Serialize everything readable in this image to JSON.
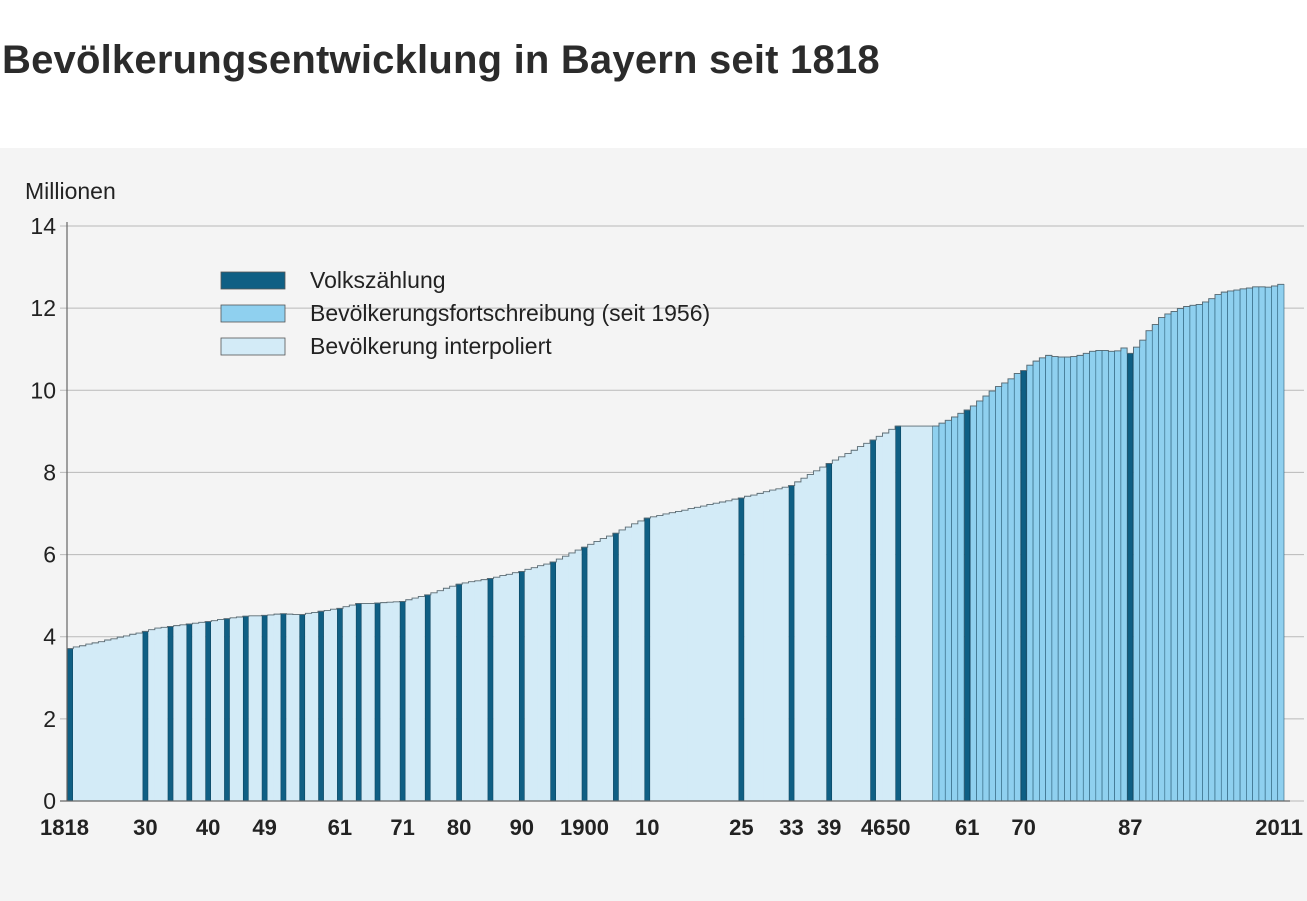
{
  "chart_data": {
    "type": "bar",
    "title": "Bevölkerungsentwicklung in Bayern seit 1818",
    "ylabel": "Millionen",
    "xlabel": "",
    "ylim": [
      0,
      14
    ],
    "y_ticks": [
      0,
      2,
      4,
      6,
      8,
      10,
      12,
      14
    ],
    "grid": true,
    "x_range": [
      1818,
      2011
    ],
    "x_tick_labels": [
      {
        "year": 1818,
        "label": "1818"
      },
      {
        "year": 1830,
        "label": "30"
      },
      {
        "year": 1840,
        "label": "40"
      },
      {
        "year": 1849,
        "label": "49"
      },
      {
        "year": 1861,
        "label": "61"
      },
      {
        "year": 1871,
        "label": "71"
      },
      {
        "year": 1880,
        "label": "80"
      },
      {
        "year": 1890,
        "label": "90"
      },
      {
        "year": 1900,
        "label": "1900"
      },
      {
        "year": 1910,
        "label": "10"
      },
      {
        "year": 1925,
        "label": "25"
      },
      {
        "year": 1933,
        "label": "33"
      },
      {
        "year": 1939,
        "label": "39"
      },
      {
        "year": 1946,
        "label": "46"
      },
      {
        "year": 1950,
        "label": "50"
      },
      {
        "year": 1961,
        "label": "61"
      },
      {
        "year": 1970,
        "label": "70"
      },
      {
        "year": 1987,
        "label": "87"
      },
      {
        "year": 2011,
        "label": "2011"
      }
    ],
    "legend": {
      "placement": "top-left",
      "entries": [
        {
          "key": "census",
          "label": "Volkszählung",
          "color": "#0f5f84"
        },
        {
          "key": "estimate",
          "label": "Bevölkerungsfortschreibung (seit 1956)",
          "color": "#8fd0ef"
        },
        {
          "key": "interpolated",
          "label": "Bevölkerung interpoliert",
          "color": "#d3ebf7"
        }
      ]
    },
    "series": [
      {
        "key": "census",
        "values": [
          [
            1818,
            3.71
          ],
          [
            1830,
            4.13
          ],
          [
            1834,
            4.25
          ],
          [
            1837,
            4.31
          ],
          [
            1840,
            4.37
          ],
          [
            1843,
            4.44
          ],
          [
            1846,
            4.5
          ],
          [
            1849,
            4.52
          ],
          [
            1852,
            4.56
          ],
          [
            1855,
            4.54
          ],
          [
            1858,
            4.62
          ],
          [
            1861,
            4.69
          ],
          [
            1864,
            4.81
          ],
          [
            1867,
            4.82
          ],
          [
            1871,
            4.86
          ],
          [
            1875,
            5.02
          ],
          [
            1880,
            5.28
          ],
          [
            1885,
            5.42
          ],
          [
            1890,
            5.59
          ],
          [
            1895,
            5.82
          ],
          [
            1900,
            6.18
          ],
          [
            1905,
            6.52
          ],
          [
            1910,
            6.89
          ],
          [
            1925,
            7.38
          ],
          [
            1933,
            7.68
          ],
          [
            1939,
            8.22
          ],
          [
            1946,
            8.79
          ],
          [
            1950,
            9.13
          ],
          [
            1961,
            9.52
          ],
          [
            1970,
            10.48
          ],
          [
            1987,
            10.9
          ]
        ]
      },
      {
        "key": "estimate",
        "values": [
          [
            1956,
            9.13
          ],
          [
            1957,
            9.2
          ],
          [
            1958,
            9.27
          ],
          [
            1959,
            9.35
          ],
          [
            1960,
            9.44
          ],
          [
            1962,
            9.62
          ],
          [
            1963,
            9.74
          ],
          [
            1964,
            9.86
          ],
          [
            1965,
            9.98
          ],
          [
            1966,
            10.09
          ],
          [
            1967,
            10.18
          ],
          [
            1968,
            10.28
          ],
          [
            1969,
            10.41
          ],
          [
            1971,
            10.61
          ],
          [
            1972,
            10.71
          ],
          [
            1973,
            10.79
          ],
          [
            1974,
            10.85
          ],
          [
            1975,
            10.82
          ],
          [
            1976,
            10.81
          ],
          [
            1977,
            10.81
          ],
          [
            1978,
            10.82
          ],
          [
            1979,
            10.85
          ],
          [
            1980,
            10.9
          ],
          [
            1981,
            10.95
          ],
          [
            1982,
            10.97
          ],
          [
            1983,
            10.97
          ],
          [
            1984,
            10.95
          ],
          [
            1985,
            10.96
          ],
          [
            1986,
            11.03
          ],
          [
            1988,
            11.05
          ],
          [
            1989,
            11.22
          ],
          [
            1990,
            11.45
          ],
          [
            1991,
            11.6
          ],
          [
            1992,
            11.77
          ],
          [
            1993,
            11.86
          ],
          [
            1994,
            11.92
          ],
          [
            1995,
            11.99
          ],
          [
            1996,
            12.04
          ],
          [
            1997,
            12.07
          ],
          [
            1998,
            12.09
          ],
          [
            1999,
            12.15
          ],
          [
            2000,
            12.23
          ],
          [
            2001,
            12.33
          ],
          [
            2002,
            12.39
          ],
          [
            2003,
            12.42
          ],
          [
            2004,
            12.44
          ],
          [
            2005,
            12.47
          ],
          [
            2006,
            12.49
          ],
          [
            2007,
            12.52
          ],
          [
            2008,
            12.52
          ],
          [
            2009,
            12.51
          ],
          [
            2010,
            12.54
          ],
          [
            2011,
            12.58
          ]
        ]
      },
      {
        "key": "interpolated",
        "values": [
          [
            1819,
            3.75
          ],
          [
            1820,
            3.78
          ],
          [
            1821,
            3.82
          ],
          [
            1822,
            3.85
          ],
          [
            1823,
            3.88
          ],
          [
            1824,
            3.92
          ],
          [
            1825,
            3.95
          ],
          [
            1826,
            3.99
          ],
          [
            1827,
            4.02
          ],
          [
            1828,
            4.06
          ],
          [
            1829,
            4.09
          ],
          [
            1831,
            4.17
          ],
          [
            1832,
            4.21
          ],
          [
            1833,
            4.23
          ],
          [
            1835,
            4.27
          ],
          [
            1836,
            4.29
          ],
          [
            1838,
            4.33
          ],
          [
            1839,
            4.35
          ],
          [
            1841,
            4.39
          ],
          [
            1842,
            4.42
          ],
          [
            1844,
            4.46
          ],
          [
            1845,
            4.48
          ],
          [
            1847,
            4.51
          ],
          [
            1848,
            4.51
          ],
          [
            1850,
            4.53
          ],
          [
            1851,
            4.55
          ],
          [
            1853,
            4.55
          ],
          [
            1854,
            4.54
          ],
          [
            1856,
            4.57
          ],
          [
            1857,
            4.59
          ],
          [
            1859,
            4.64
          ],
          [
            1860,
            4.67
          ],
          [
            1862,
            4.73
          ],
          [
            1863,
            4.77
          ],
          [
            1865,
            4.81
          ],
          [
            1866,
            4.81
          ],
          [
            1868,
            4.83
          ],
          [
            1869,
            4.84
          ],
          [
            1870,
            4.85
          ],
          [
            1872,
            4.9
          ],
          [
            1873,
            4.94
          ],
          [
            1874,
            4.98
          ],
          [
            1876,
            5.07
          ],
          [
            1877,
            5.12
          ],
          [
            1878,
            5.18
          ],
          [
            1879,
            5.23
          ],
          [
            1881,
            5.31
          ],
          [
            1882,
            5.34
          ],
          [
            1883,
            5.36
          ],
          [
            1884,
            5.39
          ],
          [
            1886,
            5.45
          ],
          [
            1887,
            5.49
          ],
          [
            1888,
            5.52
          ],
          [
            1889,
            5.56
          ],
          [
            1891,
            5.64
          ],
          [
            1892,
            5.68
          ],
          [
            1893,
            5.73
          ],
          [
            1894,
            5.77
          ],
          [
            1896,
            5.89
          ],
          [
            1897,
            5.96
          ],
          [
            1898,
            6.04
          ],
          [
            1899,
            6.11
          ],
          [
            1901,
            6.25
          ],
          [
            1902,
            6.32
          ],
          [
            1903,
            6.39
          ],
          [
            1904,
            6.45
          ],
          [
            1906,
            6.6
          ],
          [
            1907,
            6.67
          ],
          [
            1908,
            6.75
          ],
          [
            1909,
            6.82
          ],
          [
            1911,
            6.92
          ],
          [
            1912,
            6.95
          ],
          [
            1913,
            6.99
          ],
          [
            1914,
            7.02
          ],
          [
            1915,
            7.05
          ],
          [
            1916,
            7.08
          ],
          [
            1917,
            7.12
          ],
          [
            1918,
            7.15
          ],
          [
            1919,
            7.18
          ],
          [
            1920,
            7.22
          ],
          [
            1921,
            7.25
          ],
          [
            1922,
            7.28
          ],
          [
            1923,
            7.31
          ],
          [
            1924,
            7.35
          ],
          [
            1926,
            7.42
          ],
          [
            1927,
            7.45
          ],
          [
            1928,
            7.49
          ],
          [
            1929,
            7.53
          ],
          [
            1930,
            7.57
          ],
          [
            1931,
            7.6
          ],
          [
            1932,
            7.64
          ],
          [
            1934,
            7.77
          ],
          [
            1935,
            7.86
          ],
          [
            1936,
            7.95
          ],
          [
            1937,
            8.04
          ],
          [
            1938,
            8.13
          ],
          [
            1940,
            8.3
          ],
          [
            1941,
            8.38
          ],
          [
            1942,
            8.46
          ],
          [
            1943,
            8.54
          ],
          [
            1944,
            8.63
          ],
          [
            1945,
            8.71
          ],
          [
            1947,
            8.88
          ],
          [
            1948,
            8.96
          ],
          [
            1949,
            9.05
          ],
          [
            1951,
            9.13
          ],
          [
            1952,
            9.13
          ],
          [
            1953,
            9.13
          ],
          [
            1954,
            9.13
          ],
          [
            1955,
            9.13
          ]
        ]
      }
    ]
  }
}
